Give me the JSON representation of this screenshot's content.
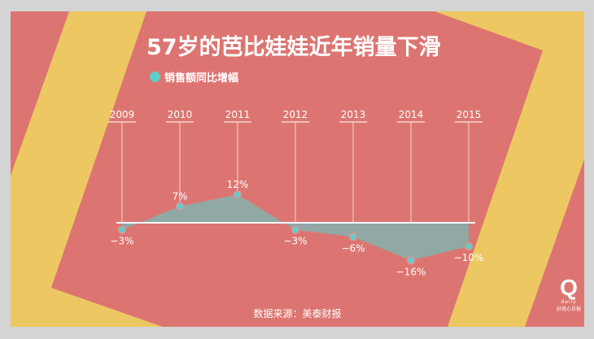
{
  "title": "57岁的芭比娃娃近年销量下滑",
  "source": "数据来源：美泰财报",
  "logo": {
    "text": "Q",
    "sub": "daily",
    "caption": "好奇心日报"
  },
  "colors": {
    "background": "#dc7571",
    "accent": "#edc862",
    "area": "#91a8a4",
    "point": "#5ecfcb"
  },
  "chart_data": {
    "type": "area",
    "title": "57岁的芭比娃娃近年销量下滑",
    "legend": [
      "销售额同比增幅"
    ],
    "legend_position": "top-left",
    "categories": [
      "2009",
      "2010",
      "2011",
      "2012",
      "2013",
      "2014",
      "2015"
    ],
    "series": [
      {
        "name": "销售额同比增幅",
        "values": [
          -3,
          7,
          12,
          -3,
          -6,
          -16,
          -10
        ]
      }
    ],
    "labels": [
      "−3%",
      "7%",
      "12%",
      "−3%",
      "−6%",
      "−16%",
      "−10%"
    ],
    "unit": "%"
  }
}
